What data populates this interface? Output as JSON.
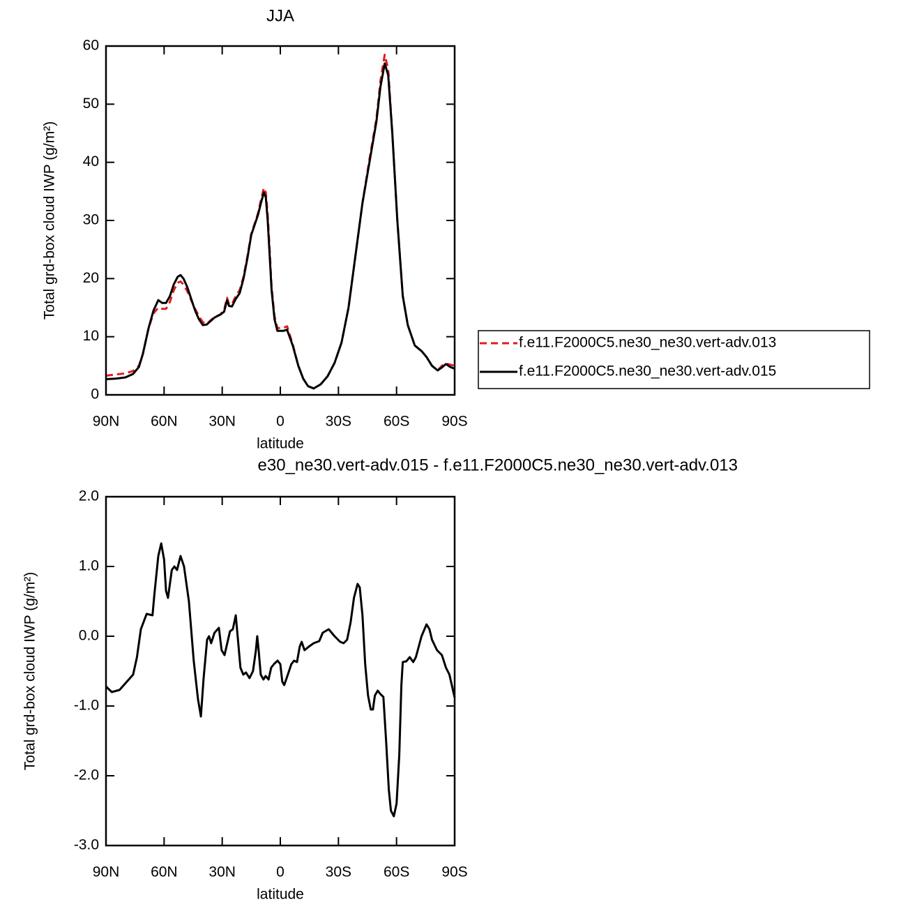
{
  "chart_data": [
    {
      "type": "line",
      "title": "JJA",
      "xlabel": "latitude",
      "ylabel": "Total grd-box cloud IWP (g/m²)",
      "xlim": [
        90,
        -90
      ],
      "ylim": [
        0,
        60
      ],
      "xticks": [
        {
          "value": 90,
          "label": "90N"
        },
        {
          "value": 60,
          "label": "60N"
        },
        {
          "value": 30,
          "label": "30N"
        },
        0,
        {
          "value": -30,
          "label": "30S"
        },
        {
          "value": -60,
          "label": "60S"
        },
        {
          "value": -90,
          "label": "90S"
        }
      ],
      "yticks": [
        0,
        10,
        20,
        30,
        40,
        50,
        60
      ],
      "legend": "right",
      "x": [
        90,
        85,
        80,
        76,
        73,
        71,
        68,
        65.5,
        63,
        61,
        59,
        57,
        55,
        53,
        51.5,
        50,
        48,
        46,
        44,
        42,
        40,
        38,
        36,
        34,
        31,
        29,
        27.5,
        26.5,
        25,
        23,
        21,
        19,
        17,
        15,
        13,
        11.5,
        10,
        8.5,
        7.5,
        6.5,
        5.5,
        4.5,
        3,
        1.5,
        0,
        -1.5,
        -3.5,
        -6.4,
        -9.3,
        -11.8,
        -14.3,
        -17.2,
        -20.8,
        -24.4,
        -28,
        -31.6,
        -35.2,
        -38.8,
        -42.4,
        -46,
        -49.6,
        -51.7,
        -53.9,
        -55.7,
        -57.8,
        -60.4,
        -63.2,
        -65.8,
        -69.4,
        -73,
        -75.5,
        -78.3,
        -81.2,
        -83.4,
        -85.5,
        -87.7,
        -90
      ],
      "series": [
        {
          "name": "f.e11.F2000C5.ne30_ne30.vert-adv.013",
          "color": "#e41a1c",
          "linestyle": "dashed",
          "values": [
            3.3,
            3.5,
            3.7,
            4.1,
            5,
            7,
            11.5,
            14,
            15,
            14.8,
            14.8,
            16,
            18,
            19.3,
            19.5,
            19,
            17.8,
            16.3,
            14.8,
            13.5,
            12.5,
            12.2,
            12.8,
            13.4,
            13.8,
            14.6,
            16.7,
            15.6,
            15.6,
            17,
            18,
            20.3,
            23.8,
            27.7,
            29.7,
            31.3,
            33.5,
            35.6,
            34.8,
            31,
            25,
            18.5,
            13.5,
            11.5,
            11.5,
            11.5,
            11.8,
            8.7,
            5,
            2.8,
            1.5,
            1.1,
            1.8,
            3.2,
            5.5,
            9,
            15,
            24,
            33,
            40.5,
            47.5,
            54,
            58.5,
            56,
            45,
            30,
            17,
            12,
            8.5,
            7.5,
            6.5,
            5,
            4.2,
            5,
            5.4,
            5.2,
            5
          ]
        },
        {
          "name": "f.e11.F2000C5.ne30_ne30.vert-adv.015",
          "color": "#000000",
          "linestyle": "solid",
          "values": [
            2.7,
            2.8,
            3.0,
            3.6,
            4.8,
            7,
            11.5,
            14.5,
            16.3,
            15.8,
            15.8,
            17,
            19,
            20.3,
            20.6,
            20,
            18.5,
            16.5,
            14.5,
            13,
            12,
            12.1,
            12.7,
            13.3,
            13.8,
            14.3,
            16.3,
            15.3,
            15.2,
            16.5,
            17.5,
            20,
            23.5,
            27.5,
            29.5,
            31,
            33,
            34.8,
            34,
            30,
            24,
            18,
            13,
            11,
            11,
            11,
            11.2,
            8.5,
            5,
            2.8,
            1.5,
            1.1,
            1.8,
            3.2,
            5.5,
            9,
            15,
            24,
            33,
            40,
            47,
            53,
            57,
            55,
            45,
            30,
            17,
            12,
            8.5,
            7.5,
            6.5,
            5,
            4.2,
            4.7,
            5.3,
            4.8,
            4.5
          ]
        }
      ]
    },
    {
      "type": "line",
      "title": "e30_ne30.vert-adv.015 - f.e11.F2000C5.ne30_ne30.vert-adv.013",
      "xlabel": "latitude",
      "ylabel": "Total grd-box cloud IWP (g/m²)",
      "xlim": [
        90,
        -90
      ],
      "ylim": [
        -3,
        2
      ],
      "xticks": [
        {
          "value": 90,
          "label": "90N"
        },
        {
          "value": 60,
          "label": "60N"
        },
        {
          "value": 30,
          "label": "30N"
        },
        0,
        {
          "value": -30,
          "label": "30S"
        },
        {
          "value": -60,
          "label": "60S"
        },
        {
          "value": -90,
          "label": "90S"
        }
      ],
      "yticks": [
        {
          "value": -3,
          "label": "-3.0"
        },
        {
          "value": -2,
          "label": "-2.0"
        },
        {
          "value": -1,
          "label": "-1.0"
        },
        {
          "value": 0,
          "label": "0.0"
        },
        {
          "value": 1,
          "label": "1.0"
        },
        {
          "value": 2,
          "label": "2.0"
        }
      ],
      "color": "#000000",
      "x": [
        90,
        87,
        83,
        76,
        74,
        72,
        69,
        66,
        65,
        63,
        61.5,
        60,
        59,
        58,
        56,
        54.7,
        53.3,
        51.5,
        49.7,
        47.2,
        44.7,
        42.5,
        41,
        39.6,
        37.8,
        36.8,
        35.7,
        34,
        31.7,
        30.3,
        28.8,
        27.4,
        26,
        24.5,
        23,
        21.7,
        20.6,
        19.1,
        17.7,
        15.9,
        14.1,
        12.6,
        11.9,
        11.2,
        10.1,
        8.7,
        7.6,
        6.1,
        4.7,
        3.3,
        1.4,
        0,
        -1,
        -2,
        -3.9,
        -5.7,
        -7.1,
        -8.6,
        -10,
        -11,
        -12.5,
        -14.7,
        -17.2,
        -20.1,
        -21.9,
        -25,
        -28,
        -30.9,
        -32.7,
        -34.5,
        -36.3,
        -38,
        -39.9,
        -41,
        -42.4,
        -43.8,
        -45.3,
        -46.7,
        -47.8,
        -48.8,
        -50.3,
        -51.7,
        -53.2,
        -54.6,
        -56,
        -57.1,
        -58.6,
        -60,
        -61.4,
        -62.5,
        -63.2,
        -65,
        -66.8,
        -68.6,
        -70,
        -72.9,
        -75.5,
        -77,
        -78.3,
        -80.9,
        -83.4,
        -85.5,
        -87.3,
        -90
      ],
      "values": [
        -0.72,
        -0.8,
        -0.77,
        -0.55,
        -0.3,
        0.1,
        0.32,
        0.3,
        0.6,
        1.15,
        1.33,
        1.1,
        0.65,
        0.55,
        0.95,
        1.0,
        0.95,
        1.15,
        1.0,
        0.5,
        -0.35,
        -0.9,
        -1.15,
        -0.6,
        -0.05,
        0.0,
        -0.1,
        0.05,
        0.12,
        -0.2,
        -0.27,
        -0.1,
        0.07,
        0.1,
        0.3,
        -0.1,
        -0.45,
        -0.55,
        -0.52,
        -0.6,
        -0.5,
        -0.2,
        0.0,
        -0.2,
        -0.55,
        -0.62,
        -0.57,
        -0.62,
        -0.45,
        -0.4,
        -0.35,
        -0.4,
        -0.65,
        -0.7,
        -0.55,
        -0.4,
        -0.35,
        -0.37,
        -0.15,
        -0.08,
        -0.2,
        -0.15,
        -0.1,
        -0.07,
        0.05,
        0.1,
        0.0,
        -0.08,
        -0.1,
        -0.05,
        0.2,
        0.55,
        0.75,
        0.7,
        0.3,
        -0.4,
        -0.85,
        -1.05,
        -1.05,
        -0.85,
        -0.78,
        -0.83,
        -0.87,
        -1.5,
        -2.2,
        -2.5,
        -2.58,
        -2.4,
        -1.7,
        -0.7,
        -0.37,
        -0.36,
        -0.3,
        -0.37,
        -0.3,
        0.0,
        0.17,
        0.1,
        -0.05,
        -0.2,
        -0.27,
        -0.45,
        -0.55,
        -0.88
      ]
    }
  ]
}
